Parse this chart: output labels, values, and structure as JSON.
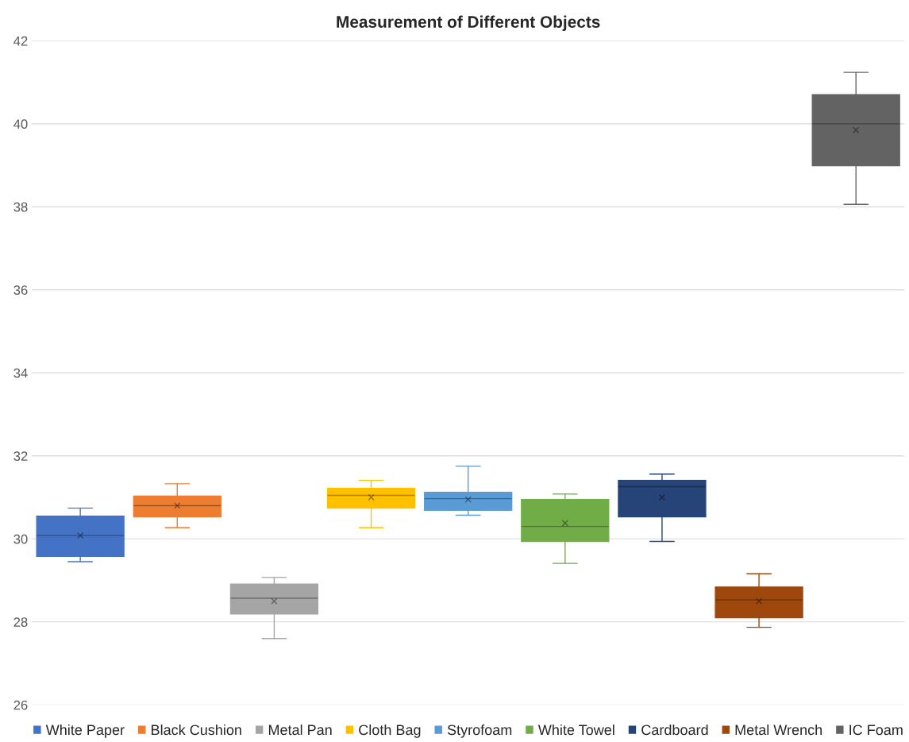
{
  "chart_data": {
    "type": "box",
    "title": "Measurement of Different Objects",
    "categories": [
      null,
      null,
      null,
      null,
      null,
      null,
      null,
      null,
      null
    ],
    "ylim": [
      26,
      42
    ],
    "yticks": [
      26,
      28,
      30,
      32,
      34,
      36,
      38,
      40,
      42
    ],
    "grid": "y",
    "legend": "bottom",
    "tick_labels": "y",
    "series": [
      {
        "name": "White Paper",
        "color": "#4472c4",
        "boxes": [
          {
            "low": 29.45,
            "q1": 29.58,
            "median": 30.08,
            "q3": 30.55,
            "high": 30.74,
            "mean": 30.08
          },
          null,
          null,
          null,
          null,
          null,
          null,
          null,
          null
        ]
      },
      {
        "name": "Black Cushion",
        "color": "#ed7d31",
        "boxes": [
          null,
          {
            "low": 30.27,
            "q1": 30.53,
            "median": 30.8,
            "q3": 31.03,
            "high": 31.33,
            "mean": 30.8
          },
          null,
          null,
          null,
          null,
          null,
          null,
          null
        ]
      },
      {
        "name": "Metal Pan",
        "color": "#a5a5a5",
        "boxes": [
          null,
          null,
          {
            "low": 27.6,
            "q1": 28.19,
            "median": 28.57,
            "q3": 28.91,
            "high": 29.07,
            "mean": 28.5
          },
          null,
          null,
          null,
          null,
          null,
          null
        ]
      },
      {
        "name": "Cloth Bag",
        "color": "#ffc000",
        "boxes": [
          null,
          null,
          null,
          {
            "low": 30.27,
            "q1": 30.74,
            "median": 31.05,
            "q3": 31.22,
            "high": 31.41,
            "mean": 31.0
          },
          null,
          null,
          null,
          null,
          null
        ]
      },
      {
        "name": "Styrofoam",
        "color": "#5b9bd5",
        "boxes": [
          null,
          null,
          null,
          null,
          {
            "low": 30.57,
            "q1": 30.69,
            "median": 30.97,
            "q3": 31.12,
            "high": 31.75,
            "mean": 30.95
          },
          null,
          null,
          null,
          null
        ]
      },
      {
        "name": "White Towel",
        "color": "#70ad47",
        "boxes": [
          null,
          null,
          null,
          null,
          null,
          {
            "low": 29.41,
            "q1": 29.94,
            "median": 30.3,
            "q3": 30.95,
            "high": 31.08,
            "mean": 30.38
          },
          null,
          null,
          null
        ]
      },
      {
        "name": "Cardboard",
        "color": "#264478",
        "boxes": [
          null,
          null,
          null,
          null,
          null,
          null,
          {
            "low": 29.94,
            "q1": 30.53,
            "median": 31.26,
            "q3": 31.41,
            "high": 31.56,
            "mean": 31.0
          },
          null,
          null
        ]
      },
      {
        "name": "Metal Wrench",
        "color": "#9e480e",
        "boxes": [
          null,
          null,
          null,
          null,
          null,
          null,
          null,
          {
            "low": 27.87,
            "q1": 28.1,
            "median": 28.53,
            "q3": 28.84,
            "high": 29.16,
            "mean": 28.5
          },
          null
        ]
      },
      {
        "name": "IC Foam",
        "color": "#636363",
        "boxes": [
          null,
          null,
          null,
          null,
          null,
          null,
          null,
          null,
          {
            "low": 38.06,
            "q1": 38.99,
            "median": 40.0,
            "q3": 40.7,
            "high": 41.24,
            "mean": 39.85
          }
        ]
      }
    ]
  }
}
